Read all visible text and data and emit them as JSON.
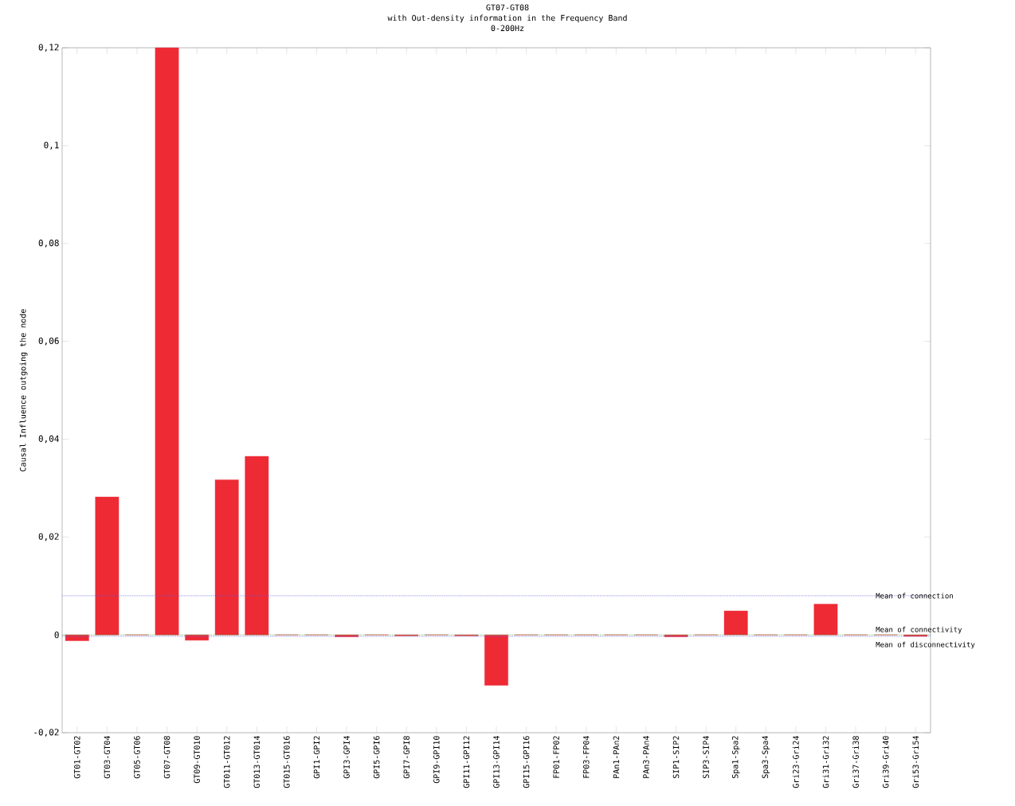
{
  "chart_data": {
    "type": "bar",
    "title": "GT07-GT08",
    "subtitle": "with Out-density information in the Frequency Band",
    "annotations": [
      "0-200Hz"
    ],
    "ylabel": "Causal Influence outgoing the node",
    "categories": [
      "GT01-GT02",
      "GT03-GT04",
      "GT05-GT06",
      "GT07-GT08",
      "GT09-GT010",
      "GT011-GT012",
      "GT013-GT014",
      "GT015-GT016",
      "GPI1-GPI2",
      "GPI3-GPI4",
      "GPI5-GPI6",
      "GPI7-GPI8",
      "GPI9-GPI10",
      "GPI11-GPI12",
      "GPI13-GPI14",
      "GPI15-GPI16",
      "FP01-FP02",
      "FP03-FP04",
      "PAn1-PAn2",
      "PAn3-PAn4",
      "SIP1-SIP2",
      "SIP3-SIP4",
      "Spa1-Spa2",
      "Spa3-Spa4",
      "Gri23-Gri24",
      "Gri31-Gri32",
      "Gri37-Gri38",
      "Gri39-Gri40",
      "Gri53-Gri54"
    ],
    "values": [
      -0.0012,
      0.0282,
      0,
      0.12,
      -0.0011,
      0.0317,
      0.0365,
      0,
      0,
      -0.0004,
      0,
      -0.0002,
      0,
      -0.0002,
      -0.0103,
      0,
      0,
      0,
      0,
      0,
      -0.0004,
      0,
      0.0049,
      0,
      0,
      0.0063,
      0,
      0,
      -0.0003
    ],
    "color": "#ee2a35",
    "ylim": [
      -0.02,
      0.12
    ],
    "yticks": [
      {
        "value": -0.02,
        "label": "-0,02"
      },
      {
        "value": 0,
        "label": "0"
      },
      {
        "value": 0.02,
        "label": "0,02"
      },
      {
        "value": 0.04,
        "label": "0,04"
      },
      {
        "value": 0.06,
        "label": "0,06"
      },
      {
        "value": 0.08,
        "label": "0,08"
      },
      {
        "value": 0.1,
        "label": "0,1"
      },
      {
        "value": 0.12,
        "label": "0,12"
      }
    ],
    "ref_lines": [
      {
        "axis": "y",
        "value": 0.008,
        "label": "Mean of connection",
        "color": "#6060e0",
        "line_style": "dotted"
      },
      {
        "axis": "y",
        "value": 0,
        "label": "Mean of connectivity",
        "color": "#40a040",
        "line_style": "dotted"
      },
      {
        "axis": "y",
        "value": -0.0003,
        "label": "Mean of disconnectivity",
        "color": "#6060e0",
        "line_style": "dotted"
      }
    ],
    "grid": false
  }
}
